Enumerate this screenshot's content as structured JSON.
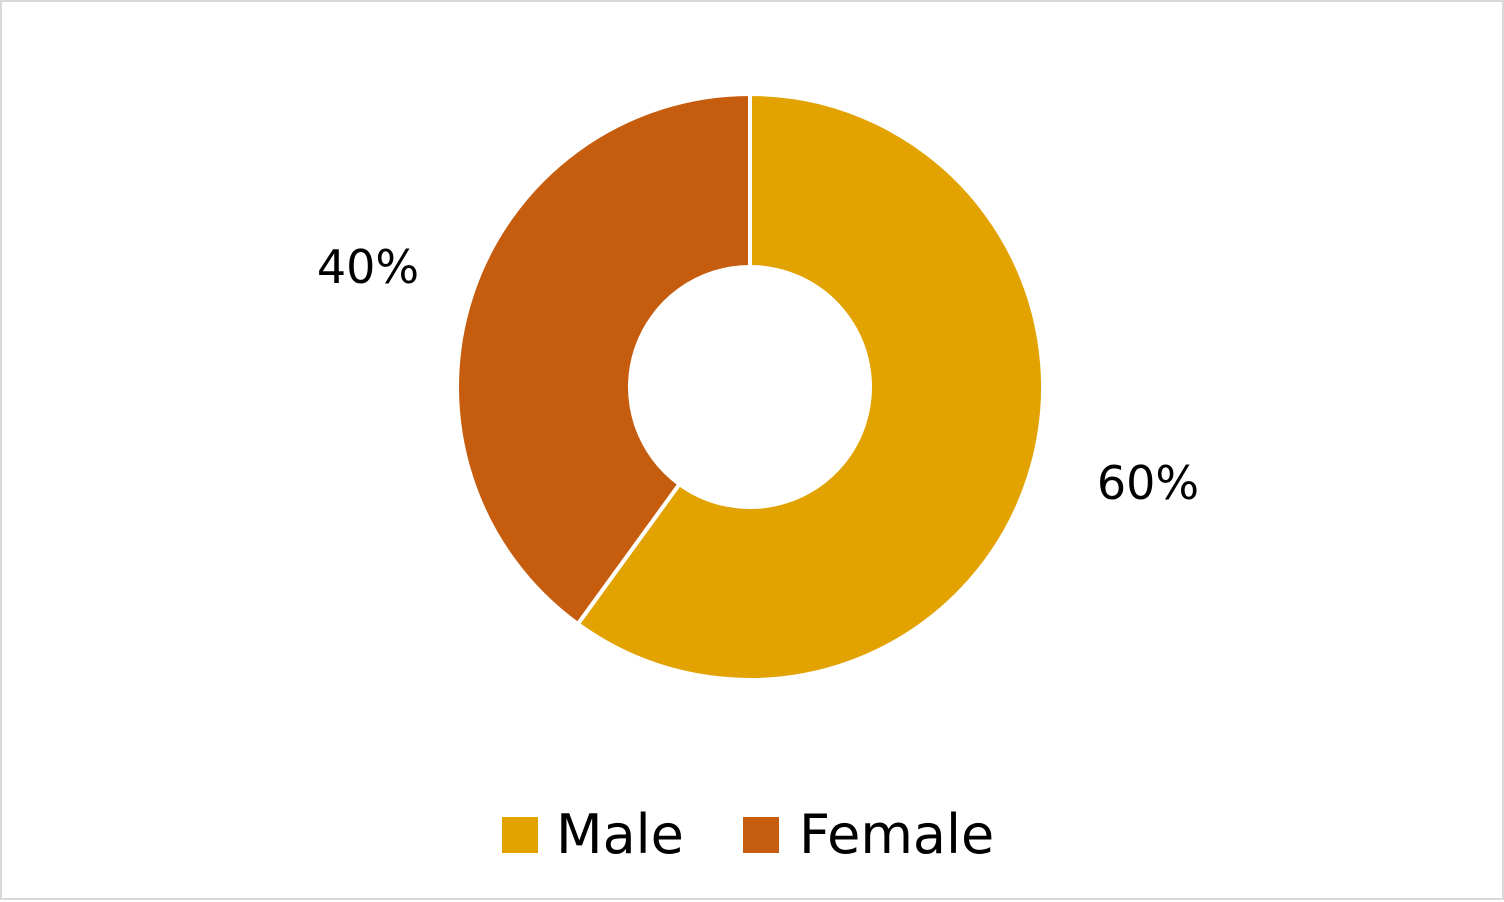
{
  "chart_data": {
    "type": "pie",
    "donut": true,
    "title": "",
    "categories": [
      "Male",
      "Female"
    ],
    "values": [
      60,
      40
    ],
    "data_labels": [
      "60%",
      "40%"
    ],
    "colors": [
      "#E2A200",
      "#C65C0E"
    ],
    "legend": {
      "placement": "bottom",
      "entries": [
        "Male",
        "Female"
      ]
    },
    "start_angle_deg": 0,
    "direction": "clockwise"
  }
}
